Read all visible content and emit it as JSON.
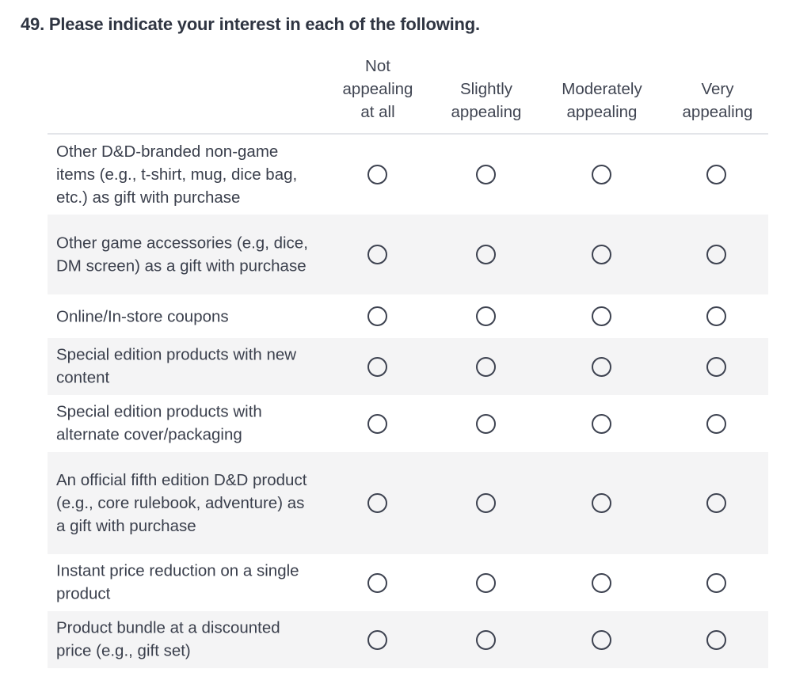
{
  "question": {
    "title": "49. Please indicate your interest in each of the following."
  },
  "columns": [
    {
      "lines": [
        "Not",
        "appealing",
        "at all"
      ]
    },
    {
      "lines": [
        "Slightly",
        "appealing"
      ]
    },
    {
      "lines": [
        "Moderately",
        "appealing"
      ]
    },
    {
      "lines": [
        "Very",
        "appealing"
      ]
    }
  ],
  "rows": [
    {
      "label": "Other D&D-branded non-game items (e.g., t-shirt, mug, dice bag, etc.) as gift with purchase",
      "selected": null
    },
    {
      "label": "Other game accessories (e.g, dice, DM screen) as a gift with purchase",
      "selected": null
    },
    {
      "label": "Online/In-store coupons",
      "selected": null
    },
    {
      "label": "Special edition products with new content",
      "selected": null
    },
    {
      "label": "Special edition products with alternate cover/packaging",
      "selected": null
    },
    {
      "label": "An official fifth edition D&D product (e.g., core rulebook, adventure) as a gift with purchase",
      "selected": null
    },
    {
      "label": "Instant price reduction on a single product",
      "selected": null
    },
    {
      "label": "Product bundle at a discounted price (e.g., gift set)",
      "selected": null
    }
  ]
}
